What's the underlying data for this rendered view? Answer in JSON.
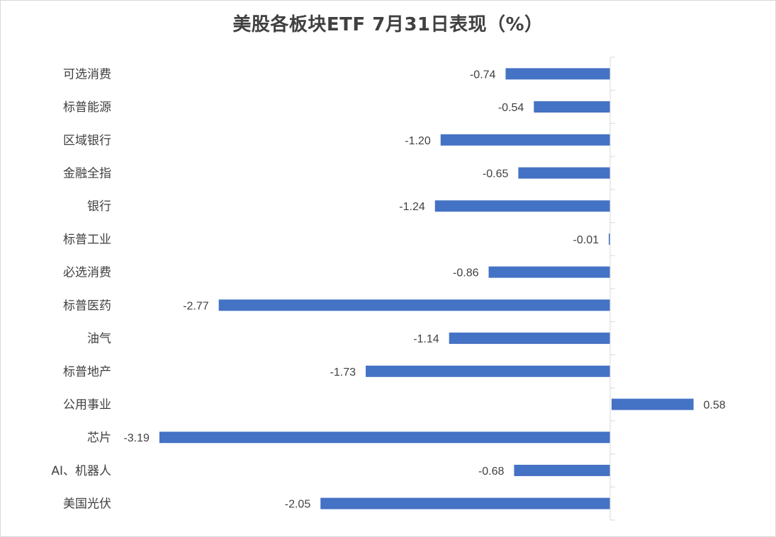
{
  "chart_data": {
    "type": "bar",
    "orientation": "horizontal",
    "title": "美股各板块ETF  7月31日表现（%）",
    "categories": [
      "可选消费",
      "标普能源",
      "区域银行",
      "金融全指",
      "银行",
      "标普工业",
      "必选消费",
      "标普医药",
      "油气",
      "标普地产",
      "公用事业",
      "芯片",
      "AI、机器人",
      "美国光伏"
    ],
    "values": [
      -0.74,
      -0.54,
      -1.2,
      -0.65,
      -1.24,
      -0.01,
      -0.86,
      -2.77,
      -1.14,
      -1.73,
      0.58,
      -3.19,
      -0.68,
      -2.05
    ],
    "value_labels": [
      "-0.74",
      "-0.54",
      "-1.20",
      "-0.65",
      "-1.24",
      "-0.01",
      "-0.86",
      "-2.77",
      "-1.14",
      "-1.73",
      "0.58",
      "-3.19",
      "-0.68",
      "-2.05"
    ],
    "xlim": [
      -3.5,
      1.0
    ],
    "bar_color": "#4472C4",
    "grid": false,
    "legend": "none"
  }
}
